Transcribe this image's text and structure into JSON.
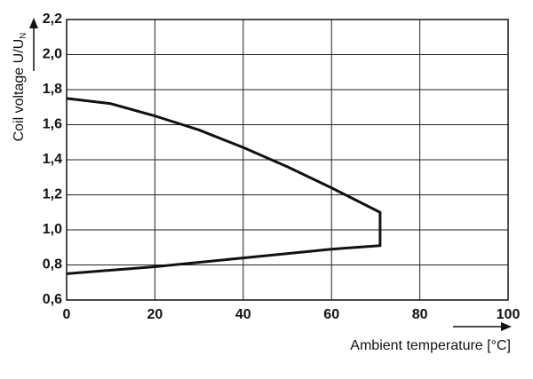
{
  "chart_data": {
    "type": "line",
    "xlabel": "Ambient temperature [°C]",
    "ylabel": "Coil voltage U/U",
    "ylabel_sub": "N",
    "x": [
      0,
      10,
      20,
      30,
      40,
      50,
      60,
      71,
      71,
      60,
      40,
      20,
      0
    ],
    "series": [
      {
        "color": "#111111",
        "values": [
          1.75,
          1.72,
          1.65,
          1.57,
          1.47,
          1.36,
          1.24,
          1.1,
          0.91,
          0.89,
          0.84,
          0.79,
          0.75
        ]
      }
    ],
    "xlim": [
      0,
      100
    ],
    "xticks": [
      0,
      20,
      40,
      60,
      80,
      100
    ],
    "ylim": [
      0.6,
      2.2
    ],
    "yticks": [
      {
        "value": 0.6,
        "label": "0,6"
      },
      {
        "value": 0.8,
        "label": "0,8"
      },
      {
        "value": 1.0,
        "label": "1,0"
      },
      {
        "value": 1.2,
        "label": "1,2"
      },
      {
        "value": 1.4,
        "label": "1,4"
      },
      {
        "value": 1.6,
        "label": "1,6"
      },
      {
        "value": 1.8,
        "label": "1,8"
      },
      {
        "value": 2.0,
        "label": "2,0"
      },
      {
        "value": 2.2,
        "label": "2,2"
      }
    ],
    "grid": true
  }
}
